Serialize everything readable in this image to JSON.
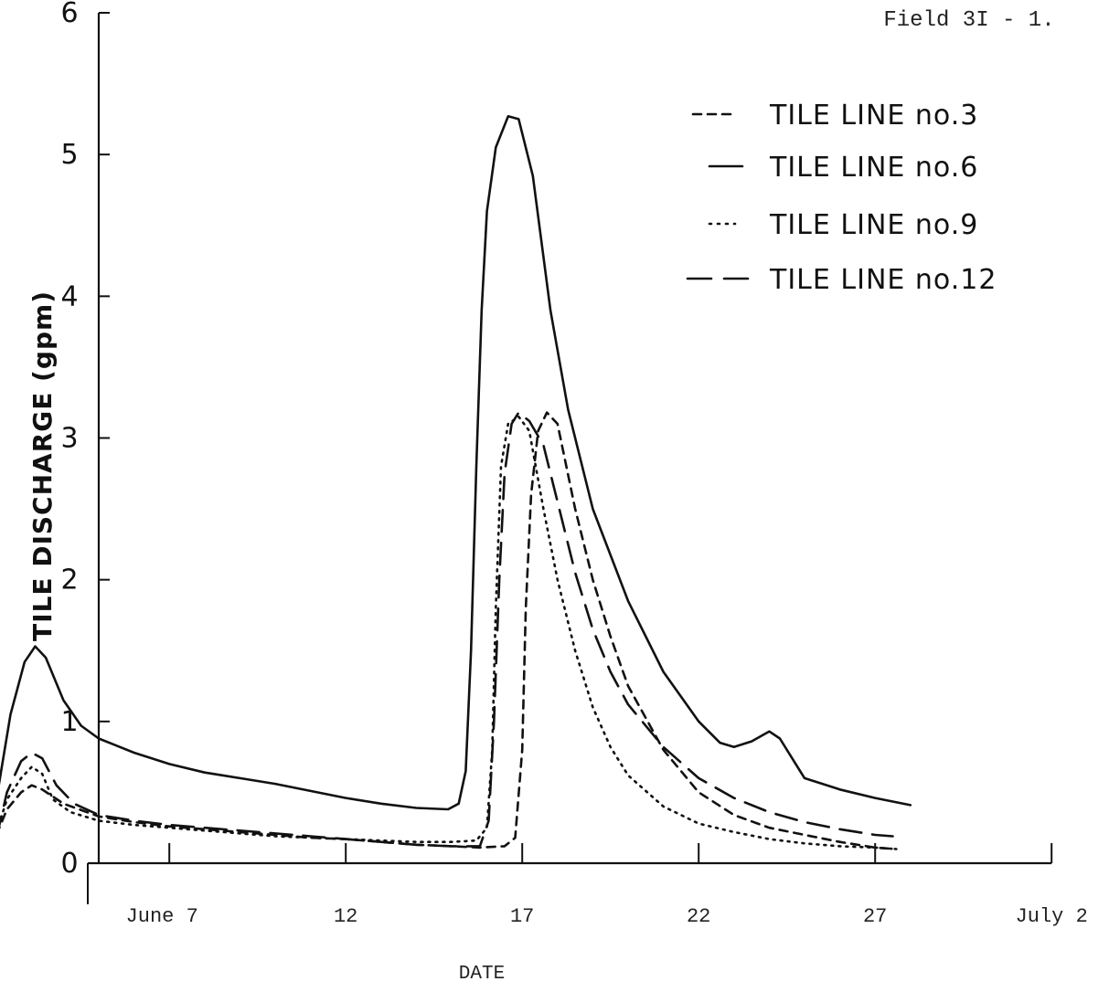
{
  "chart_data": {
    "type": "line",
    "field_label": "Field 3I - 1.",
    "xlabel": "DATE",
    "ylabel": "TILE DISCHARGE (gpm)",
    "ylim": [
      0,
      6
    ],
    "xlim": [
      2,
      32
    ],
    "grid": false,
    "legend_position": "top-right",
    "y_ticks": [
      {
        "value": 0,
        "label": "0"
      },
      {
        "value": 1,
        "label": "1"
      },
      {
        "value": 2,
        "label": "2"
      },
      {
        "value": 3,
        "label": "3"
      },
      {
        "value": 4,
        "label": "4"
      },
      {
        "value": 5,
        "label": "5"
      },
      {
        "value": 6,
        "label": "6"
      }
    ],
    "x_ticks": [
      {
        "value": 7,
        "label": "June 7"
      },
      {
        "value": 12,
        "label": "12"
      },
      {
        "value": 17,
        "label": "17"
      },
      {
        "value": 22,
        "label": "22"
      },
      {
        "value": 27,
        "label": "27"
      },
      {
        "value": 32,
        "label": "July 2"
      }
    ],
    "series": [
      {
        "name": "TILE LINE no.3",
        "style": "short-dash",
        "points": [
          [
            2.1,
            0.2
          ],
          [
            2.4,
            0.38
          ],
          [
            2.8,
            0.5
          ],
          [
            3.1,
            0.55
          ],
          [
            3.4,
            0.52
          ],
          [
            4,
            0.42
          ],
          [
            5,
            0.33
          ],
          [
            6,
            0.29
          ],
          [
            7,
            0.26
          ],
          [
            8,
            0.24
          ],
          [
            9,
            0.22
          ],
          [
            10,
            0.2
          ],
          [
            11,
            0.18
          ],
          [
            12,
            0.17
          ],
          [
            13,
            0.15
          ],
          [
            14,
            0.13
          ],
          [
            15,
            0.12
          ],
          [
            15.8,
            0.11
          ],
          [
            16.5,
            0.12
          ],
          [
            16.8,
            0.18
          ],
          [
            17.0,
            0.8
          ],
          [
            17.1,
            1.8
          ],
          [
            17.25,
            2.6
          ],
          [
            17.45,
            3.05
          ],
          [
            17.7,
            3.18
          ],
          [
            18.0,
            3.1
          ],
          [
            18.5,
            2.5
          ],
          [
            19,
            2.0
          ],
          [
            19.5,
            1.6
          ],
          [
            20,
            1.25
          ],
          [
            21,
            0.8
          ],
          [
            22,
            0.5
          ],
          [
            23,
            0.34
          ],
          [
            24,
            0.25
          ],
          [
            25,
            0.2
          ],
          [
            26,
            0.15
          ],
          [
            27,
            0.11
          ],
          [
            27.6,
            0.1
          ]
        ]
      },
      {
        "name": "TILE LINE no.6",
        "style": "solid",
        "points": [
          [
            2.1,
            0.45
          ],
          [
            2.5,
            1.05
          ],
          [
            2.9,
            1.42
          ],
          [
            3.2,
            1.53
          ],
          [
            3.5,
            1.45
          ],
          [
            4,
            1.15
          ],
          [
            4.5,
            0.97
          ],
          [
            5,
            0.88
          ],
          [
            6,
            0.78
          ],
          [
            7,
            0.7
          ],
          [
            8,
            0.64
          ],
          [
            9,
            0.6
          ],
          [
            10,
            0.56
          ],
          [
            11,
            0.51
          ],
          [
            12,
            0.46
          ],
          [
            13,
            0.42
          ],
          [
            14,
            0.39
          ],
          [
            14.9,
            0.38
          ],
          [
            15.2,
            0.42
          ],
          [
            15.4,
            0.65
          ],
          [
            15.55,
            1.5
          ],
          [
            15.7,
            2.8
          ],
          [
            15.85,
            3.9
          ],
          [
            16.0,
            4.6
          ],
          [
            16.25,
            5.05
          ],
          [
            16.6,
            5.27
          ],
          [
            16.9,
            5.25
          ],
          [
            17.3,
            4.85
          ],
          [
            17.8,
            3.9
          ],
          [
            18.3,
            3.2
          ],
          [
            19,
            2.5
          ],
          [
            20,
            1.85
          ],
          [
            21,
            1.35
          ],
          [
            22,
            1.0
          ],
          [
            22.6,
            0.85
          ],
          [
            23,
            0.82
          ],
          [
            23.5,
            0.86
          ],
          [
            24,
            0.93
          ],
          [
            24.3,
            0.88
          ],
          [
            24.7,
            0.72
          ],
          [
            25,
            0.6
          ],
          [
            26,
            0.52
          ],
          [
            27,
            0.46
          ],
          [
            28,
            0.41
          ]
        ]
      },
      {
        "name": "TILE LINE no.9",
        "style": "dotted",
        "points": [
          [
            2.1,
            0.22
          ],
          [
            2.4,
            0.45
          ],
          [
            2.8,
            0.6
          ],
          [
            3.1,
            0.68
          ],
          [
            3.4,
            0.63
          ],
          [
            3.7,
            0.45
          ],
          [
            4.2,
            0.36
          ],
          [
            5,
            0.3
          ],
          [
            6,
            0.27
          ],
          [
            7,
            0.25
          ],
          [
            8,
            0.23
          ],
          [
            9,
            0.21
          ],
          [
            10,
            0.19
          ],
          [
            11,
            0.18
          ],
          [
            12,
            0.17
          ],
          [
            13,
            0.16
          ],
          [
            14,
            0.15
          ],
          [
            15,
            0.15
          ],
          [
            15.7,
            0.16
          ],
          [
            16.0,
            0.25
          ],
          [
            16.15,
            0.8
          ],
          [
            16.25,
            1.8
          ],
          [
            16.4,
            2.8
          ],
          [
            16.6,
            3.1
          ],
          [
            16.9,
            3.15
          ],
          [
            17.2,
            3.05
          ],
          [
            17.6,
            2.5
          ],
          [
            18,
            2.0
          ],
          [
            18.5,
            1.5
          ],
          [
            19,
            1.1
          ],
          [
            19.5,
            0.82
          ],
          [
            20,
            0.62
          ],
          [
            21,
            0.4
          ],
          [
            22,
            0.28
          ],
          [
            23,
            0.22
          ],
          [
            24,
            0.17
          ],
          [
            25,
            0.14
          ],
          [
            26,
            0.12
          ],
          [
            27,
            0.11
          ],
          [
            27.6,
            0.1
          ]
        ]
      },
      {
        "name": "TILE LINE no.12",
        "style": "long-dash",
        "points": [
          [
            2.1,
            0.18
          ],
          [
            2.4,
            0.5
          ],
          [
            2.8,
            0.72
          ],
          [
            3.1,
            0.78
          ],
          [
            3.4,
            0.74
          ],
          [
            3.8,
            0.55
          ],
          [
            4.3,
            0.42
          ],
          [
            5,
            0.34
          ],
          [
            6,
            0.3
          ],
          [
            7,
            0.27
          ],
          [
            8,
            0.25
          ],
          [
            9,
            0.23
          ],
          [
            10,
            0.21
          ],
          [
            11,
            0.19
          ],
          [
            12,
            0.17
          ],
          [
            13,
            0.15
          ],
          [
            14,
            0.13
          ],
          [
            15,
            0.12
          ],
          [
            15.8,
            0.12
          ],
          [
            16.05,
            0.3
          ],
          [
            16.2,
            1.0
          ],
          [
            16.35,
            2.0
          ],
          [
            16.5,
            2.75
          ],
          [
            16.7,
            3.1
          ],
          [
            16.9,
            3.18
          ],
          [
            17.2,
            3.12
          ],
          [
            17.6,
            2.95
          ],
          [
            18,
            2.55
          ],
          [
            18.5,
            2.05
          ],
          [
            19,
            1.65
          ],
          [
            19.5,
            1.35
          ],
          [
            20,
            1.12
          ],
          [
            21,
            0.82
          ],
          [
            22,
            0.6
          ],
          [
            23,
            0.46
          ],
          [
            24,
            0.36
          ],
          [
            25,
            0.29
          ],
          [
            26,
            0.24
          ],
          [
            27,
            0.2
          ],
          [
            27.5,
            0.19
          ]
        ]
      }
    ]
  }
}
